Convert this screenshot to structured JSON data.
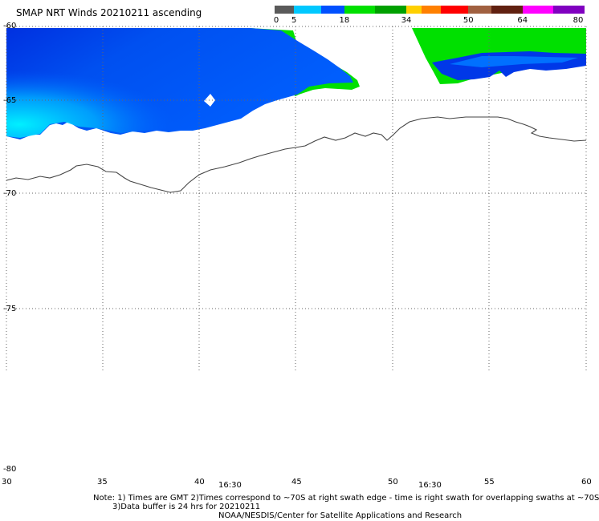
{
  "title": "SMAP NRT Winds 20210211 ascending",
  "colorbar": {
    "labels": [
      "0",
      "5",
      "18",
      "34",
      "50",
      "64",
      "80"
    ],
    "segments": [
      {
        "color": "#5a5a5a",
        "from": 0,
        "to": 5
      },
      {
        "color": "#00c8ff",
        "from": 5,
        "to": 12
      },
      {
        "color": "#0050ff",
        "from": 12,
        "to": 18
      },
      {
        "color": "#00e000",
        "from": 18,
        "to": 26
      },
      {
        "color": "#00a000",
        "from": 26,
        "to": 34
      },
      {
        "color": "#ffd000",
        "from": 34,
        "to": 38
      },
      {
        "color": "#ff8000",
        "from": 38,
        "to": 43
      },
      {
        "color": "#ff0000",
        "from": 43,
        "to": 50
      },
      {
        "color": "#a06040",
        "from": 50,
        "to": 56
      },
      {
        "color": "#602010",
        "from": 56,
        "to": 64
      },
      {
        "color": "#ff00ff",
        "from": 64,
        "to": 72
      },
      {
        "color": "#8000c0",
        "from": 72,
        "to": 80
      }
    ]
  },
  "lat_labels": [
    "-65",
    "-70",
    "-75",
    "-80"
  ],
  "lon_labels": [
    "30",
    "35",
    "40",
    "45",
    "50",
    "55",
    "60"
  ],
  "time_labels": [
    "16:30",
    "16:30"
  ],
  "notes": [
    "Note: 1) Times are GMT 2)Times correspond to ~70S at right swath edge - time is right swath for overlapping swaths at ~70S",
    "3)Data buffer is 24 hrs for 20210211",
    "NOAA/NESDIS/Center for Satellite Applications and Research"
  ],
  "colors": {
    "wind_light": "#00e0ff",
    "wind_mid": "#0070ff",
    "wind_dark": "#0030e0",
    "wind_green": "#00e000"
  }
}
